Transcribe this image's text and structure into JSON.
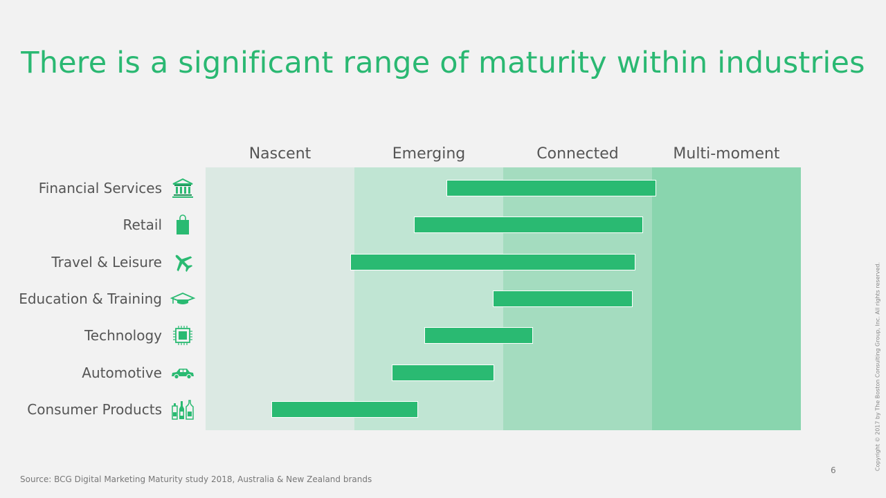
{
  "title": "There is a significant range of maturity within industries",
  "colors": {
    "title": "#2ab872",
    "bar": "#2aba72",
    "band_shades": [
      "#dbe9e3",
      "#c0e5d3",
      "#a4dcbf",
      "#89d5ae"
    ],
    "icon": "#2aba72"
  },
  "chart_data": {
    "type": "bar",
    "orientation": "horizontal",
    "subtype": "range",
    "x_axis": {
      "categories": [
        "Nascent",
        "Emerging",
        "Connected",
        "Multi-moment"
      ],
      "range": [
        0,
        4
      ]
    },
    "rows": [
      {
        "label": "Financial Services",
        "icon": "bank-icon",
        "start": 1.62,
        "end": 3.03
      },
      {
        "label": "Retail",
        "icon": "shopping-bag-icon",
        "start": 1.4,
        "end": 2.94
      },
      {
        "label": "Travel & Leisure",
        "icon": "airplane-icon",
        "start": 0.97,
        "end": 2.89
      },
      {
        "label": "Education & Training",
        "icon": "graduation-cap-icon",
        "start": 1.93,
        "end": 2.87
      },
      {
        "label": "Technology",
        "icon": "microchip-icon",
        "start": 1.47,
        "end": 2.2
      },
      {
        "label": "Automotive",
        "icon": "car-icon",
        "start": 1.25,
        "end": 1.94
      },
      {
        "label": "Consumer Products",
        "icon": "bottles-icon",
        "start": 0.44,
        "end": 1.43
      }
    ],
    "grid": false,
    "legend": "none"
  },
  "source": "Source: BCG Digital Marketing Maturity study 2018, Australia & New Zealand brands",
  "page_number": "6",
  "copyright": "Copyright © 2017 by The Boston Consulting Group, Inc. All rights reserved."
}
